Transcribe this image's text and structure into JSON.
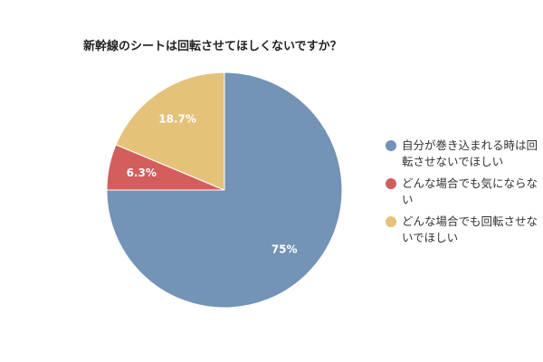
{
  "chart_data": {
    "type": "pie",
    "title": "新幹線のシートは回転させてほしくないですか？",
    "categories": [
      "自分が巻き込まれる時は回転させないでほしい",
      "どんな場合でも気にならない",
      "どんな場合でも回転させないでほしい"
    ],
    "values": [
      75,
      6.3,
      18.7
    ],
    "value_labels": [
      "75%",
      "6.3%",
      "18.7%"
    ],
    "colors": [
      "#7393b7",
      "#d45d5d",
      "#e5c27a"
    ],
    "legend": "right"
  }
}
